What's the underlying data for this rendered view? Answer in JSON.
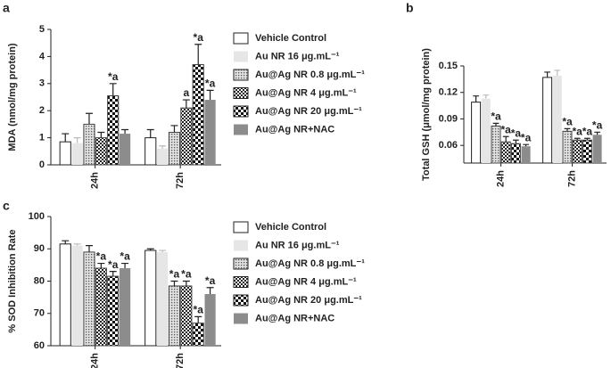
{
  "chart_data": [
    {
      "type": "bar",
      "label": "a",
      "ylabel": "MDA (nmol/mg protein)",
      "categories": [
        "24h",
        "72h"
      ],
      "ylim": [
        0,
        5
      ],
      "yticks": [
        0,
        1,
        2,
        3,
        4,
        5
      ],
      "legend": "right",
      "series": [
        {
          "name": "Vehicle Control",
          "color": "#ffffff",
          "pattern": "none",
          "values": [
            0.85,
            1.0
          ],
          "errors": [
            0.3,
            0.3
          ],
          "annotations": [
            null,
            null
          ]
        },
        {
          "name": "Au NR 16 μg.mL⁻¹",
          "color": "#e6e6e6",
          "pattern": "none",
          "values": [
            0.8,
            0.6
          ],
          "errors": [
            0.2,
            0.1
          ],
          "annotations": [
            null,
            null
          ]
        },
        {
          "name": "Au@Ag NR 0.8 μg.mL⁻¹",
          "color": "#bdbdbd",
          "pattern": "dots",
          "values": [
            1.5,
            1.2
          ],
          "errors": [
            0.4,
            0.25
          ],
          "annotations": [
            null,
            null
          ]
        },
        {
          "name": "Au@Ag NR 4 μg.mL⁻¹",
          "color": "#555555",
          "pattern": "check-small",
          "values": [
            1.0,
            2.1
          ],
          "errors": [
            0.2,
            0.3
          ],
          "annotations": [
            null,
            "a"
          ]
        },
        {
          "name": "Au@Ag NR 20 μg.mL⁻¹",
          "color": "#333333",
          "pattern": "check-large",
          "values": [
            2.55,
            3.7
          ],
          "errors": [
            0.45,
            0.75
          ],
          "annotations": [
            "*a",
            "*a"
          ]
        },
        {
          "name": "Au@Ag NR+NAC",
          "color": "#8c8c8c",
          "pattern": "none",
          "values": [
            1.15,
            2.4
          ],
          "errors": [
            0.15,
            0.35
          ],
          "annotations": [
            null,
            "*a"
          ]
        }
      ]
    },
    {
      "type": "bar",
      "label": "b",
      "ylabel": "Total GSH (μmol/mg protein)",
      "categories": [
        "24h",
        "72h"
      ],
      "ylim": [
        0.04,
        0.15
      ],
      "yticks": [
        0.06,
        0.09,
        0.12,
        0.15
      ],
      "legend": "none",
      "series": [
        {
          "color": "#ffffff",
          "pattern": "none",
          "values": [
            0.109,
            0.137
          ],
          "errors": [
            0.007,
            0.006
          ],
          "annotations": [
            null,
            null
          ]
        },
        {
          "color": "#e6e6e6",
          "pattern": "none",
          "values": [
            0.113,
            0.139
          ],
          "errors": [
            0.004,
            0.006
          ],
          "annotations": [
            null,
            null
          ]
        },
        {
          "color": "#bdbdbd",
          "pattern": "dots",
          "values": [
            0.082,
            0.076
          ],
          "errors": [
            0.003,
            0.003
          ],
          "annotations": [
            "*a",
            "*a"
          ]
        },
        {
          "color": "#555555",
          "pattern": "check-small",
          "values": [
            0.064,
            0.066
          ],
          "errors": [
            0.006,
            0.002
          ],
          "annotations": [
            "*a",
            "*a"
          ]
        },
        {
          "color": "#333333",
          "pattern": "check-large",
          "values": [
            0.062,
            0.066
          ],
          "errors": [
            0.004,
            0.002
          ],
          "annotations": [
            "*a",
            "*a"
          ]
        },
        {
          "color": "#8c8c8c",
          "pattern": "none",
          "values": [
            0.059,
            0.072
          ],
          "errors": [
            0.002,
            0.003
          ],
          "annotations": [
            "*a",
            "*a"
          ]
        }
      ]
    },
    {
      "type": "bar",
      "label": "c",
      "ylabel": "% SOD Inhibition Rate",
      "categories": [
        "24h",
        "72h"
      ],
      "ylim": [
        60,
        100
      ],
      "yticks": [
        60,
        70,
        80,
        90,
        100
      ],
      "legend": "right",
      "series": [
        {
          "name": "Vehicle Control",
          "color": "#ffffff",
          "pattern": "none",
          "values": [
            91.5,
            89.5
          ],
          "errors": [
            1,
            0.5
          ],
          "annotations": [
            null,
            null
          ]
        },
        {
          "name": "Au NR 16 μg.mL⁻¹",
          "color": "#e6e6e6",
          "pattern": "none",
          "values": [
            91,
            89
          ],
          "errors": [
            0.5,
            0.5
          ],
          "annotations": [
            null,
            null
          ]
        },
        {
          "name": "Au@Ag NR 0.8 μg.mL⁻¹",
          "color": "#bdbdbd",
          "pattern": "dots",
          "values": [
            89,
            78.5
          ],
          "errors": [
            2,
            1.5
          ],
          "annotations": [
            null,
            "*a"
          ]
        },
        {
          "name": "Au@Ag NR 4 μg.mL⁻¹",
          "color": "#555555",
          "pattern": "check-small",
          "values": [
            84,
            78.5
          ],
          "errors": [
            1.5,
            1.5
          ],
          "annotations": [
            "*a",
            "*a"
          ]
        },
        {
          "name": "Au@Ag NR 20 μg.mL⁻¹",
          "color": "#333333",
          "pattern": "check-large",
          "values": [
            81.5,
            67
          ],
          "errors": [
            1.5,
            2
          ],
          "annotations": [
            "*a",
            "*a"
          ]
        },
        {
          "name": "Au@Ag NR+NAC",
          "color": "#8c8c8c",
          "pattern": "none",
          "values": [
            84,
            76
          ],
          "errors": [
            1.5,
            2
          ],
          "annotations": [
            "*a",
            "*a"
          ]
        }
      ]
    }
  ]
}
